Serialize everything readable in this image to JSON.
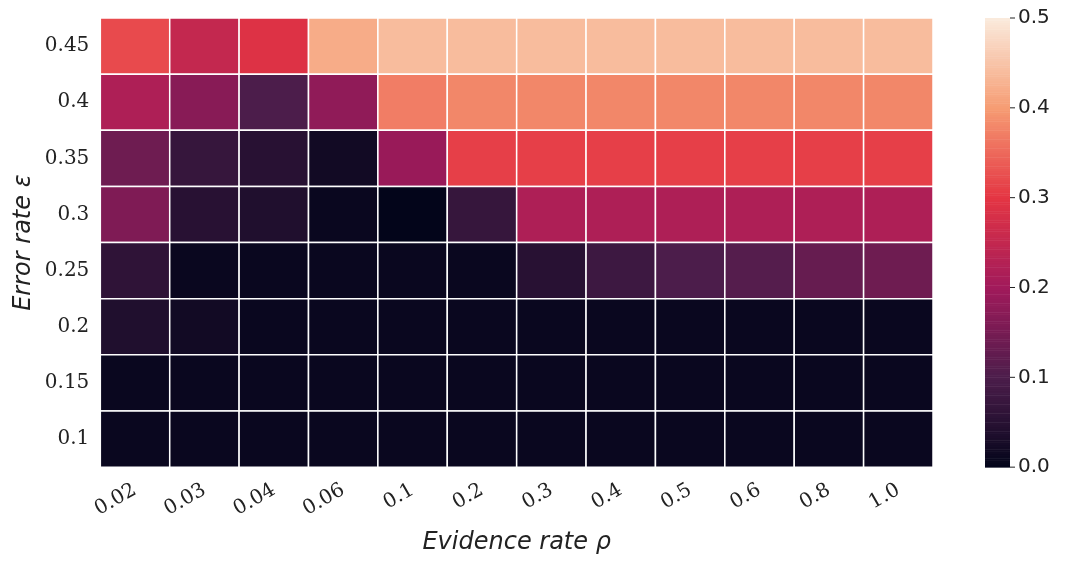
{
  "chart_data": {
    "type": "heatmap",
    "xlabel": "Evidence rate ρ",
    "ylabel": "Error rate ε",
    "categories": [
      "0.02",
      "0.03",
      "0.04",
      "0.06",
      "0.1",
      "0.2",
      "0.3",
      "0.4",
      "0.5",
      "0.6",
      "0.8",
      "1.0"
    ],
    "y_categories": [
      "0.45",
      "0.4",
      "0.35",
      "0.3",
      "0.25",
      "0.2",
      "0.15",
      "0.1"
    ],
    "cells": [
      [
        0.32,
        0.25,
        0.29,
        0.42,
        0.44,
        0.44,
        0.44,
        0.44,
        0.44,
        0.44,
        0.44,
        0.44
      ],
      [
        0.22,
        0.17,
        0.1,
        0.18,
        0.37,
        0.38,
        0.38,
        0.38,
        0.38,
        0.38,
        0.38,
        0.38
      ],
      [
        0.14,
        0.07,
        0.05,
        0.02,
        0.19,
        0.31,
        0.31,
        0.31,
        0.31,
        0.31,
        0.31,
        0.31
      ],
      [
        0.16,
        0.05,
        0.04,
        0.01,
        0.0,
        0.07,
        0.22,
        0.22,
        0.22,
        0.22,
        0.22,
        0.22
      ],
      [
        0.06,
        0.01,
        0.01,
        0.01,
        0.01,
        0.01,
        0.05,
        0.08,
        0.1,
        0.11,
        0.13,
        0.14
      ],
      [
        0.04,
        0.02,
        0.01,
        0.01,
        0.01,
        0.01,
        0.01,
        0.01,
        0.01,
        0.01,
        0.01,
        0.01
      ],
      [
        0.01,
        0.01,
        0.01,
        0.01,
        0.01,
        0.01,
        0.01,
        0.01,
        0.01,
        0.01,
        0.01,
        0.01
      ],
      [
        0.01,
        0.01,
        0.01,
        0.01,
        0.01,
        0.01,
        0.01,
        0.01,
        0.01,
        0.01,
        0.01,
        0.01
      ]
    ],
    "clim": [
      0,
      0.5
    ],
    "cticks": [
      {
        "value": 0,
        "label": "0.0"
      },
      0.1,
      0.2,
      0.3,
      0.4,
      0.5
    ]
  }
}
